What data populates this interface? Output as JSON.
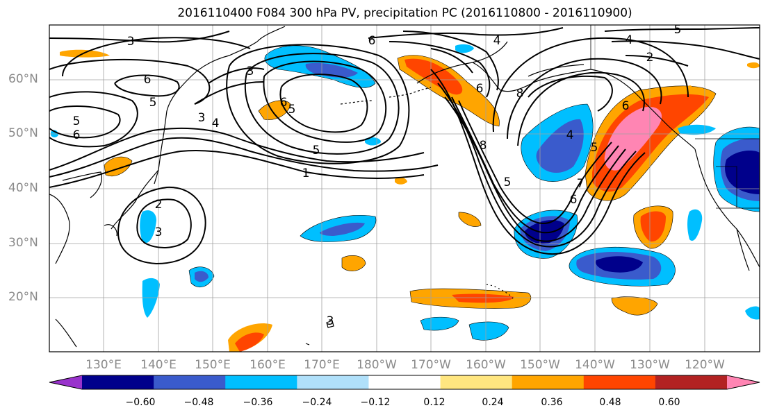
{
  "title": "2016110400 F084 300 hPa PV, precipitation PC (2016110800 - 2016110900)",
  "lat_labels": [
    "60°N",
    "50°N",
    "40°N",
    "30°N",
    "20°N"
  ],
  "lon_labels": [
    "130°E",
    "140°E",
    "150°E",
    "160°E",
    "170°E",
    "180°W",
    "170°W",
    "160°W",
    "150°W",
    "140°W",
    "130°W",
    "120°W"
  ],
  "colorbar": {
    "colors": [
      "#9932cc",
      "#00008b",
      "#3a5bcc",
      "#00bfff",
      "#b0e0fa",
      "#ffffff",
      "#ffe680",
      "#ffa500",
      "#ff4500",
      "#b22222",
      "#ff85b3"
    ],
    "tick_labels": [
      "−0.60",
      "−0.48",
      "−0.36",
      "−0.24",
      "−0.12",
      "0.12",
      "0.24",
      "0.36",
      "0.48",
      "0.60"
    ]
  },
  "contour_labels": [
    "3",
    "6",
    "4",
    "5",
    "2",
    "6",
    "5",
    "6",
    "5",
    "4",
    "5",
    "1",
    "5",
    "3",
    "6",
    "3",
    "6",
    "8",
    "5",
    "4",
    "4",
    "2",
    "6",
    "8",
    "7",
    "6",
    "3",
    "5",
    "3"
  ],
  "colors": {
    "grid": "#a0a0a0",
    "contour": "#000000",
    "frame": "#000000"
  }
}
